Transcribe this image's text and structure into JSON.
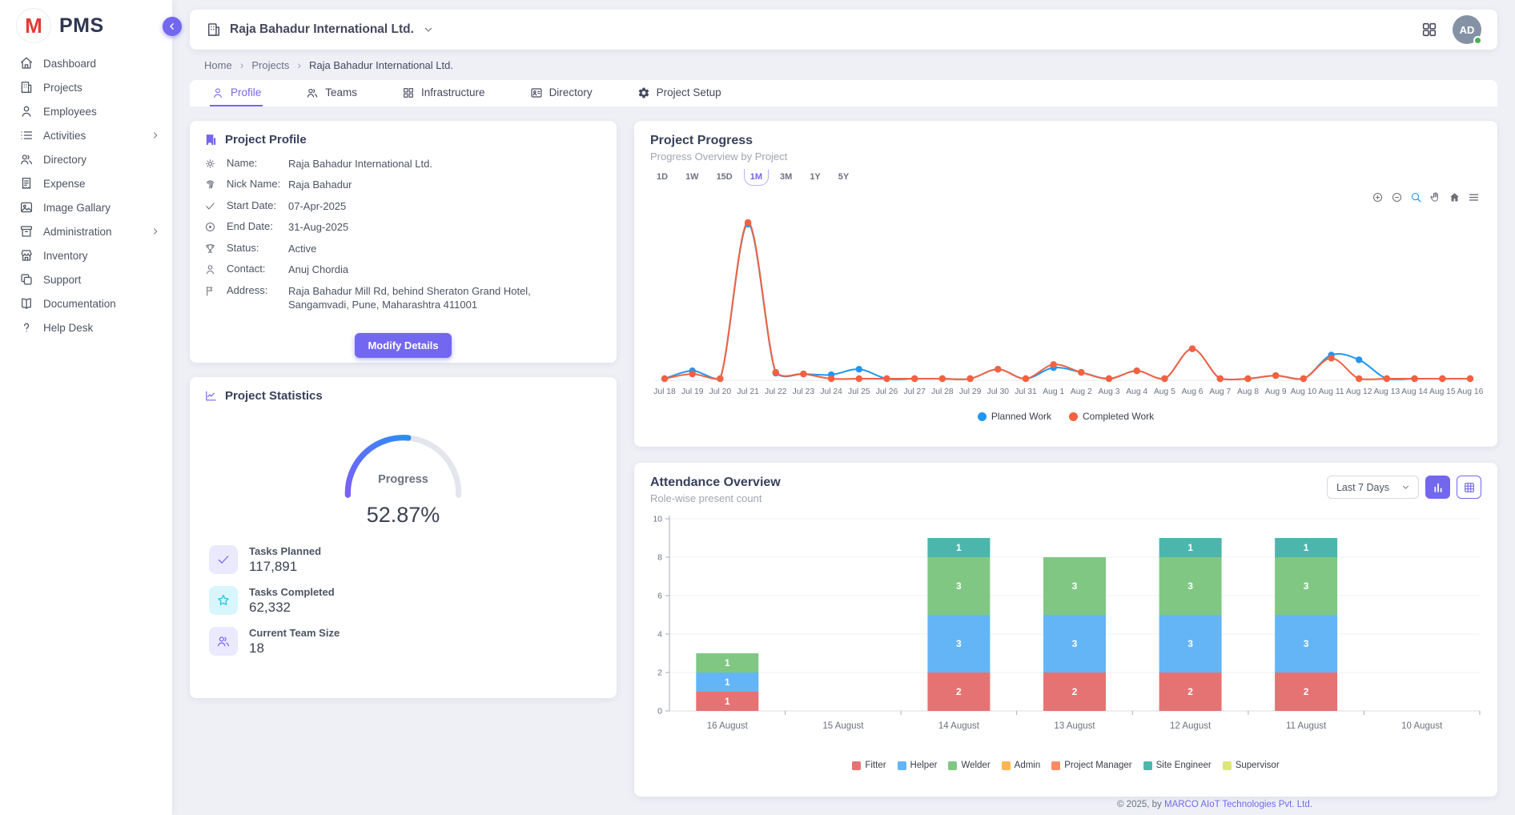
{
  "app": {
    "name": "PMS",
    "logo_letter": "M"
  },
  "colors": {
    "accent": "#7367f0",
    "line_blue": "#2196f3",
    "line_red": "#f4613f",
    "gauge_start": "#7c5ff8",
    "gauge_end": "#2e8cf6",
    "gauge_track": "#e3e6ec"
  },
  "sidebar": {
    "items": [
      {
        "label": "Dashboard",
        "icon": "home",
        "submenu": false
      },
      {
        "label": "Projects",
        "icon": "building",
        "submenu": false
      },
      {
        "label": "Employees",
        "icon": "user",
        "submenu": false
      },
      {
        "label": "Activities",
        "icon": "list",
        "submenu": true
      },
      {
        "label": "Directory",
        "icon": "users",
        "submenu": false
      },
      {
        "label": "Expense",
        "icon": "receipt",
        "submenu": false
      },
      {
        "label": "Image Gallary",
        "icon": "image",
        "submenu": false
      },
      {
        "label": "Administration",
        "icon": "archive",
        "submenu": true
      },
      {
        "label": "Inventory",
        "icon": "store",
        "submenu": false
      },
      {
        "label": "Support",
        "icon": "copy",
        "submenu": false
      },
      {
        "label": "Documentation",
        "icon": "book",
        "submenu": false
      },
      {
        "label": "Help Desk",
        "icon": "question",
        "submenu": false
      }
    ]
  },
  "header": {
    "company": "Raja Bahadur International Ltd.",
    "avatar_initials": "AD"
  },
  "breadcrumb": {
    "items": [
      "Home",
      "Projects",
      "Raja Bahadur International Ltd."
    ]
  },
  "tabs": {
    "items": [
      {
        "label": "Profile",
        "icon": "user",
        "active": true
      },
      {
        "label": "Teams",
        "icon": "users",
        "active": false
      },
      {
        "label": "Infrastructure",
        "icon": "grid",
        "active": false
      },
      {
        "label": "Directory",
        "icon": "id-card",
        "active": false
      },
      {
        "label": "Project Setup",
        "icon": "gear",
        "active": false
      }
    ]
  },
  "profile_card": {
    "title": "Project Profile",
    "fields": [
      {
        "icon": "gear-sm",
        "label": "Name:",
        "value": "Raja Bahadur International Ltd."
      },
      {
        "icon": "fingerprint",
        "label": "Nick Name:",
        "value": "Raja Bahadur"
      },
      {
        "icon": "check",
        "label": "Start Date:",
        "value": "07-Apr-2025"
      },
      {
        "icon": "target",
        "label": "End Date:",
        "value": "31-Aug-2025"
      },
      {
        "icon": "trophy",
        "label": "Status:",
        "value": "Active"
      },
      {
        "icon": "user",
        "label": "Contact:",
        "value": "Anuj Chordia"
      },
      {
        "icon": "flag",
        "label": "Address:",
        "value": "Raja Bahadur Mill Rd, behind Sheraton Grand Hotel, Sangamvadi, Pune, Maharashtra 411001"
      }
    ],
    "button_label": "Modify Details"
  },
  "stats_card": {
    "title": "Project Statistics",
    "gauge_label": "Progress",
    "gauge_value": "52.87%",
    "gauge_percent": 52.87,
    "stats": [
      {
        "icon": "check",
        "label": "Tasks Planned",
        "value": "117,891",
        "bg": "#ebe9fd",
        "fg": "#7367f0"
      },
      {
        "icon": "star",
        "label": "Tasks Completed",
        "value": "62,332",
        "bg": "#d8f6fc",
        "fg": "#21c1e8"
      },
      {
        "icon": "users",
        "label": "Current Team Size",
        "value": "18",
        "bg": "#ebe9fd",
        "fg": "#7367f0"
      }
    ]
  },
  "progress_card": {
    "title": "Project Progress",
    "subtitle": "Progress Overview by Project",
    "ranges": [
      "1D",
      "1W",
      "15D",
      "1M",
      "3M",
      "1Y",
      "5Y"
    ],
    "active_range": "1M",
    "toolbar": [
      "zoom-in",
      "zoom-out",
      "magnifier",
      "hand",
      "house",
      "menu"
    ]
  },
  "attendance_card": {
    "title": "Attendance Overview",
    "subtitle": "Role-wise present count",
    "filter_value": "Last 7 Days"
  },
  "chart_data": [
    {
      "type": "line",
      "title": "Project Progress",
      "x": [
        "Jul 18",
        "Jul 19",
        "Jul 20",
        "Jul 21",
        "Jul 22",
        "Jul 23",
        "Jul 24",
        "Jul 25",
        "Jul 26",
        "Jul 27",
        "Jul 28",
        "Jul 29",
        "Jul 30",
        "Jul 31",
        "Aug 1",
        "Aug 2",
        "Aug 3",
        "Aug 4",
        "Aug 5",
        "Aug 6",
        "Aug 7",
        "Aug 8",
        "Aug 9",
        "Aug 10",
        "Aug 11",
        "Aug 12",
        "Aug 13",
        "Aug 14",
        "Aug 15",
        "Aug 16"
      ],
      "series": [
        {
          "name": "Planned Work",
          "color": "#2196f3",
          "values": [
            1,
            6,
            1,
            99,
            4.5,
            4,
            3.5,
            7,
            1,
            1,
            1,
            1,
            7,
            1,
            8,
            5,
            1,
            6,
            1,
            20,
            1,
            1,
            3,
            1,
            16,
            13,
            1,
            1,
            1,
            1
          ]
        },
        {
          "name": "Completed Work",
          "color": "#f4613f",
          "values": [
            1,
            4,
            1,
            100,
            5,
            4,
            1,
            1,
            1,
            1,
            1,
            1,
            7,
            1,
            10,
            5,
            1,
            6,
            1,
            20,
            1,
            1,
            3,
            1,
            14,
            1,
            1,
            1,
            1,
            1
          ]
        }
      ],
      "ylim": [
        0,
        104
      ],
      "grid": false,
      "legend_position": "bottom"
    },
    {
      "type": "bar",
      "stacked": true,
      "title": "Attendance Overview",
      "categories": [
        "16 August",
        "15 August",
        "14 August",
        "13 August",
        "12 August",
        "11 August",
        "10 August"
      ],
      "series": [
        {
          "name": "Fitter",
          "color": "#e57373",
          "values": [
            1,
            0,
            2,
            2,
            2,
            2,
            0
          ]
        },
        {
          "name": "Helper",
          "color": "#64b5f6",
          "values": [
            1,
            0,
            3,
            3,
            3,
            3,
            0
          ]
        },
        {
          "name": "Welder",
          "color": "#81c784",
          "values": [
            1,
            0,
            3,
            3,
            3,
            3,
            0
          ]
        },
        {
          "name": "Admin",
          "color": "#ffb74d",
          "values": [
            0,
            0,
            0,
            0,
            0,
            0,
            0
          ]
        },
        {
          "name": "Project Manager",
          "color": "#ff8a65",
          "values": [
            0,
            0,
            0,
            0,
            0,
            0,
            0
          ]
        },
        {
          "name": "Site Engineer",
          "color": "#4db6ac",
          "values": [
            0,
            0,
            1,
            0,
            1,
            1,
            0
          ]
        },
        {
          "name": "Supervisor",
          "color": "#dce775",
          "values": [
            0,
            0,
            0,
            0,
            0,
            0,
            0
          ]
        }
      ],
      "ylim": [
        0,
        10
      ],
      "yticks": [
        0,
        2,
        4,
        6,
        8,
        10
      ],
      "grid": true,
      "legend_position": "bottom"
    }
  ],
  "footer": {
    "prefix": "© 2025, by ",
    "link": "MARCO AIoT Technologies Pvt. Ltd."
  }
}
